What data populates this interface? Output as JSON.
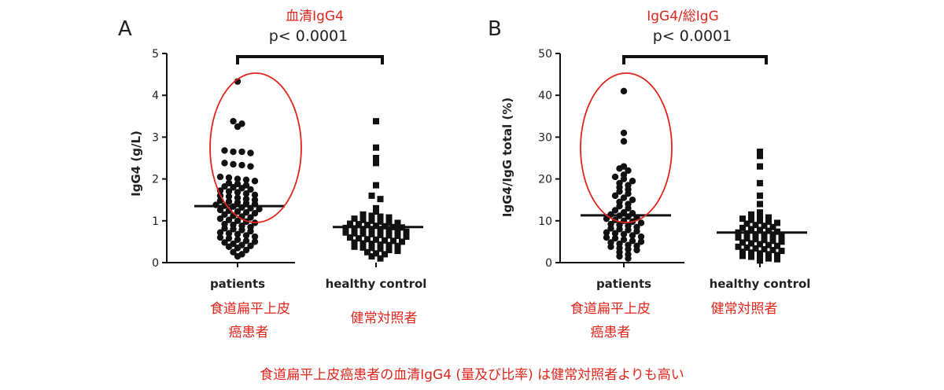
{
  "caption": "食道扁平上皮癌患者の血清IgG4 (量及び比率) は健常対照者よりも高い",
  "colors": {
    "annotation": "#e0251b",
    "marks": "#111111"
  },
  "chart_data": [
    {
      "type": "scatter",
      "panel_letter": "A",
      "annotation_title": "血清IgG4",
      "significance": "p< 0.0001",
      "ylabel": "IgG4 (g/L)",
      "ylim": [
        0,
        5
      ],
      "yticks": [
        "0",
        "1",
        "2",
        "3",
        "4",
        "5"
      ],
      "categories": [
        "patients",
        "healthy control"
      ],
      "category_labels_ja": [
        [
          "食道扁平上皮",
          "癌患者"
        ],
        [
          "健常対照者"
        ]
      ],
      "highlight": "red ellipse around patients values above ~1.3",
      "series": [
        {
          "marker": "circle",
          "median": 1.35,
          "values": [
            4.33,
            3.38,
            3.32,
            3.25,
            2.68,
            2.65,
            2.65,
            2.62,
            2.38,
            2.35,
            2.33,
            2.3,
            2.05,
            2.03,
            2.0,
            1.98,
            1.95,
            1.9,
            1.88,
            1.85,
            1.82,
            1.8,
            1.78,
            1.75,
            1.72,
            1.7,
            1.68,
            1.65,
            1.62,
            1.6,
            1.58,
            1.55,
            1.52,
            1.5,
            1.48,
            1.46,
            1.44,
            1.42,
            1.4,
            1.38,
            1.36,
            1.34,
            1.32,
            1.3,
            1.28,
            1.26,
            1.24,
            1.22,
            1.2,
            1.18,
            1.15,
            1.12,
            1.1,
            1.08,
            1.05,
            1.02,
            1.0,
            0.98,
            0.95,
            0.92,
            0.9,
            0.88,
            0.85,
            0.82,
            0.8,
            0.78,
            0.75,
            0.72,
            0.7,
            0.68,
            0.65,
            0.62,
            0.6,
            0.58,
            0.55,
            0.52,
            0.5,
            0.48,
            0.45,
            0.42,
            0.4,
            0.38,
            0.35,
            0.3,
            0.25,
            0.2,
            0.15
          ]
        },
        {
          "marker": "square",
          "median": 0.85,
          "values": [
            3.38,
            2.75,
            2.5,
            2.38,
            1.85,
            1.6,
            1.52,
            1.3,
            1.22,
            1.15,
            1.12,
            1.1,
            1.08,
            1.05,
            1.02,
            1.0,
            0.98,
            0.96,
            0.95,
            0.93,
            0.92,
            0.9,
            0.88,
            0.87,
            0.85,
            0.84,
            0.83,
            0.82,
            0.8,
            0.79,
            0.78,
            0.76,
            0.75,
            0.74,
            0.72,
            0.7,
            0.69,
            0.68,
            0.66,
            0.65,
            0.64,
            0.62,
            0.6,
            0.58,
            0.56,
            0.55,
            0.53,
            0.52,
            0.5,
            0.48,
            0.46,
            0.45,
            0.43,
            0.42,
            0.4,
            0.38,
            0.36,
            0.35,
            0.33,
            0.3,
            0.28,
            0.25,
            0.22,
            0.2,
            0.15,
            0.1
          ]
        }
      ]
    },
    {
      "type": "scatter",
      "panel_letter": "B",
      "annotation_title": "IgG4/総IgG",
      "significance": "p< 0.0001",
      "ylabel": "IgG4/IgG total (%)",
      "ylim": [
        0,
        50
      ],
      "yticks": [
        "0",
        "10",
        "20",
        "30",
        "40",
        "50"
      ],
      "categories": [
        "patients",
        "healthy control"
      ],
      "category_labels_ja": [
        [
          "食道扁平上皮",
          "癌患者"
        ],
        [
          "健常対照者"
        ]
      ],
      "highlight": "red ellipse around patients values above ~12",
      "series": [
        {
          "marker": "circle",
          "median": 11.3,
          "values": [
            41,
            31,
            29,
            23,
            22.5,
            22,
            21,
            20.5,
            20,
            19.5,
            19,
            18.5,
            18,
            17.5,
            17,
            16.5,
            16,
            15.5,
            15,
            14.5,
            14,
            13.5,
            13,
            12.5,
            12,
            11.8,
            11.5,
            11.2,
            11,
            10.8,
            10.5,
            10.2,
            10,
            9.8,
            9.5,
            9.2,
            9,
            8.8,
            8.5,
            8.2,
            8,
            7.8,
            7.5,
            7.2,
            7,
            6.8,
            6.5,
            6.2,
            6,
            5.8,
            5.5,
            5.2,
            5,
            4.8,
            4.5,
            4.2,
            4,
            3.8,
            3.5,
            3.2,
            3,
            2.5,
            2,
            1.5,
            1
          ]
        },
        {
          "marker": "square",
          "median": 7.2,
          "values": [
            26.5,
            25.5,
            23,
            19,
            16,
            14,
            12,
            11.5,
            11,
            10.8,
            10.5,
            10.2,
            10,
            9.8,
            9.5,
            9.3,
            9,
            8.8,
            8.5,
            8.3,
            8,
            7.8,
            7.6,
            7.4,
            7.2,
            7,
            6.8,
            6.6,
            6.4,
            6.2,
            6,
            5.8,
            5.6,
            5.4,
            5.2,
            5,
            4.8,
            4.6,
            4.4,
            4.2,
            4,
            3.8,
            3.6,
            3.4,
            3.2,
            3,
            2.8,
            2.6,
            2.4,
            2.2,
            2,
            1.8,
            1.6,
            1.4,
            1.2,
            1,
            0.8,
            0.5
          ]
        }
      ]
    }
  ]
}
